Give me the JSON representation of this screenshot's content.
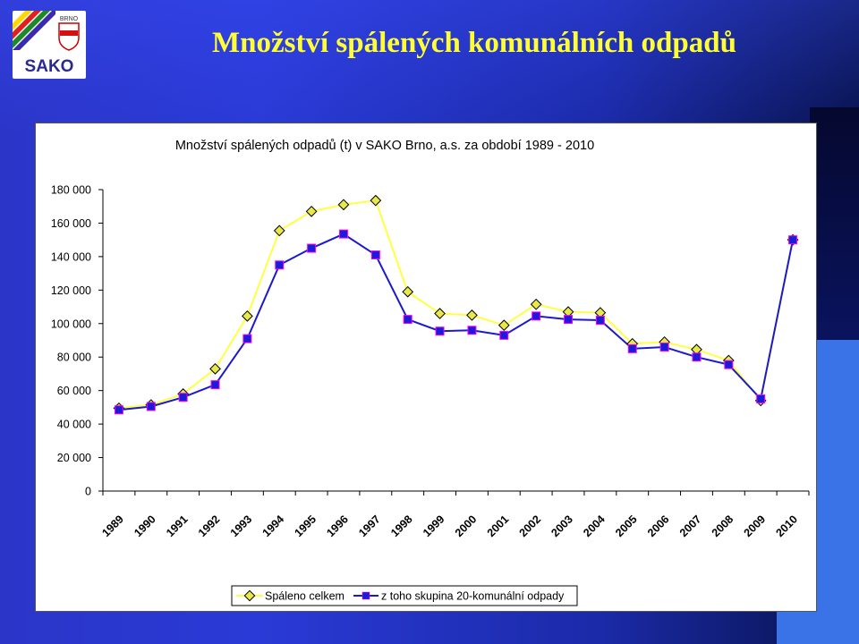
{
  "slide": {
    "title": "Množství spálených komunálních odpadů",
    "logo_brand": "SAKO",
    "logo_city": "BRNO"
  },
  "colors": {
    "series_total_line": "#ffff44",
    "series_total_marker": "#e8e84a",
    "series_municipal_line": "#1a1acc",
    "series_municipal_marker": "#1b1bd8",
    "title": "#ffff33"
  },
  "chart_data": {
    "type": "line",
    "title": "Množství spálených odpadů (t) v SAKO Brno, a.s. za období 1989 - 2010",
    "xlabel": "",
    "ylabel": "",
    "ylim": [
      0,
      180000
    ],
    "yticks": [
      0,
      20000,
      40000,
      60000,
      80000,
      100000,
      120000,
      140000,
      160000,
      180000
    ],
    "ytick_labels": [
      "0",
      "20 000",
      "40 000",
      "60 000",
      "80 000",
      "100 000",
      "120 000",
      "140 000",
      "160 000",
      "180 000"
    ],
    "categories": [
      "1989",
      "1990",
      "1991",
      "1992",
      "1993",
      "1994",
      "1995",
      "1996",
      "1997",
      "1998",
      "1999",
      "2000",
      "2001",
      "2002",
      "2003",
      "2004",
      "2005",
      "2006",
      "2007",
      "2008",
      "2009",
      "2010"
    ],
    "series": [
      {
        "name": "Spáleno celkem",
        "marker": "diamond",
        "values": [
          49500,
          51500,
          58000,
          73000,
          104500,
          155500,
          167000,
          171000,
          173500,
          119000,
          106000,
          105000,
          99000,
          111500,
          107000,
          106500,
          88000,
          89000,
          84500,
          78000,
          54000,
          150000
        ]
      },
      {
        "name": "z toho skupina 20-komunální odpady",
        "marker": "square",
        "values": [
          48500,
          50500,
          56000,
          63500,
          91000,
          135000,
          145000,
          153500,
          141000,
          102500,
          95500,
          96000,
          93000,
          104500,
          102500,
          102000,
          85000,
          86000,
          80000,
          75500,
          55000,
          150000
        ]
      }
    ],
    "legend_position": "bottom-center",
    "grid": false
  }
}
